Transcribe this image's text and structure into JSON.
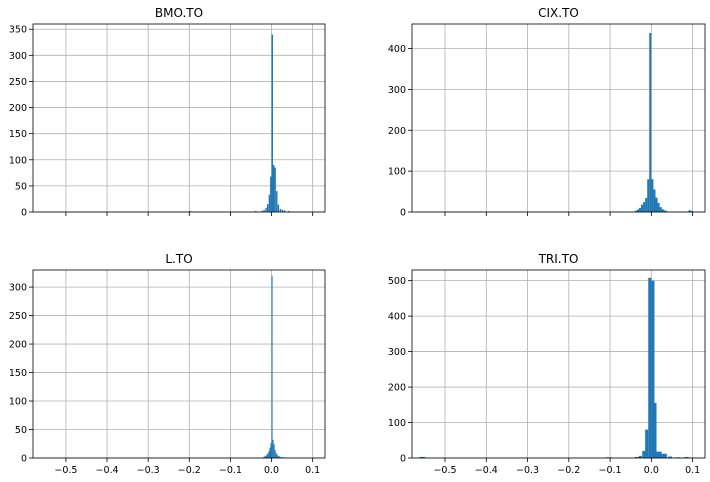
{
  "colors": {
    "bar": "#1f77b4",
    "grid": "#b0b0b0"
  },
  "chart_data": [
    {
      "type": "bar",
      "title": "BMO.TO",
      "xlim": [
        -0.58,
        0.13
      ],
      "ylim": [
        0,
        360
      ],
      "xticks": [
        -0.5,
        -0.4,
        -0.3,
        -0.2,
        -0.1,
        0.0,
        0.1
      ],
      "xtick_labels": [],
      "yticks": [
        0,
        50,
        100,
        150,
        200,
        250,
        300,
        350
      ],
      "grid": true,
      "bins": [
        {
          "x": -0.2,
          "w": 0.0035,
          "y": 2
        },
        {
          "x": -0.06,
          "w": 0.0035,
          "y": 1
        },
        {
          "x": -0.04,
          "w": 0.0035,
          "y": 2
        },
        {
          "x": -0.025,
          "w": 0.0035,
          "y": 2
        },
        {
          "x": -0.02,
          "w": 0.0035,
          "y": 4
        },
        {
          "x": -0.015,
          "w": 0.0035,
          "y": 8
        },
        {
          "x": -0.011,
          "w": 0.0035,
          "y": 15
        },
        {
          "x": -0.007,
          "w": 0.0035,
          "y": 33
        },
        {
          "x": -0.0035,
          "w": 0.0035,
          "y": 68
        },
        {
          "x": 0.0,
          "w": 0.0035,
          "y": 340
        },
        {
          "x": 0.0035,
          "w": 0.0035,
          "y": 90
        },
        {
          "x": 0.007,
          "w": 0.0035,
          "y": 85
        },
        {
          "x": 0.011,
          "w": 0.0035,
          "y": 40
        },
        {
          "x": 0.015,
          "w": 0.0035,
          "y": 14
        },
        {
          "x": 0.02,
          "w": 0.0035,
          "y": 6
        },
        {
          "x": 0.025,
          "w": 0.0035,
          "y": 4
        },
        {
          "x": 0.03,
          "w": 0.0035,
          "y": 3
        },
        {
          "x": 0.04,
          "w": 0.0035,
          "y": 2
        },
        {
          "x": 0.05,
          "w": 0.0035,
          "y": 1
        }
      ]
    },
    {
      "type": "bar",
      "title": "CIX.TO",
      "xlim": [
        -0.58,
        0.13
      ],
      "ylim": [
        0,
        460
      ],
      "xticks": [
        -0.5,
        -0.4,
        -0.3,
        -0.2,
        -0.1,
        0.0,
        0.1
      ],
      "xtick_labels": [],
      "yticks": [
        0,
        100,
        200,
        300,
        400
      ],
      "grid": true,
      "bins": [
        {
          "x": -0.04,
          "w": 0.005,
          "y": 3
        },
        {
          "x": -0.035,
          "w": 0.005,
          "y": 6
        },
        {
          "x": -0.03,
          "w": 0.005,
          "y": 10
        },
        {
          "x": -0.025,
          "w": 0.005,
          "y": 18
        },
        {
          "x": -0.02,
          "w": 0.005,
          "y": 24
        },
        {
          "x": -0.015,
          "w": 0.005,
          "y": 34
        },
        {
          "x": -0.01,
          "w": 0.005,
          "y": 80
        },
        {
          "x": -0.005,
          "w": 0.005,
          "y": 438
        },
        {
          "x": 0.0,
          "w": 0.005,
          "y": 80
        },
        {
          "x": 0.005,
          "w": 0.005,
          "y": 55
        },
        {
          "x": 0.01,
          "w": 0.005,
          "y": 35
        },
        {
          "x": 0.015,
          "w": 0.005,
          "y": 22
        },
        {
          "x": 0.02,
          "w": 0.005,
          "y": 12
        },
        {
          "x": 0.025,
          "w": 0.005,
          "y": 7
        },
        {
          "x": 0.03,
          "w": 0.005,
          "y": 4
        },
        {
          "x": 0.035,
          "w": 0.005,
          "y": 2
        },
        {
          "x": 0.09,
          "w": 0.005,
          "y": 4
        },
        {
          "x": 0.095,
          "w": 0.005,
          "y": 3
        }
      ]
    },
    {
      "type": "bar",
      "title": "L.TO",
      "xlim": [
        -0.58,
        0.13
      ],
      "ylim": [
        0,
        330
      ],
      "xticks": [
        -0.5,
        -0.4,
        -0.3,
        -0.2,
        -0.1,
        0.0,
        0.1
      ],
      "xtick_labels": [
        "−0.5",
        "−0.4",
        "−0.3",
        "−0.2",
        "−0.1",
        "0.0",
        "0.1"
      ],
      "yticks": [
        0,
        50,
        100,
        150,
        200,
        250,
        300
      ],
      "grid": true,
      "bins": [
        {
          "x": -0.14,
          "w": 0.0025,
          "y": 1
        },
        {
          "x": -0.02,
          "w": 0.0025,
          "y": 2
        },
        {
          "x": -0.0175,
          "w": 0.0025,
          "y": 3
        },
        {
          "x": -0.015,
          "w": 0.0025,
          "y": 4
        },
        {
          "x": -0.0125,
          "w": 0.0025,
          "y": 6
        },
        {
          "x": -0.01,
          "w": 0.0025,
          "y": 8
        },
        {
          "x": -0.0075,
          "w": 0.0025,
          "y": 12
        },
        {
          "x": -0.005,
          "w": 0.0025,
          "y": 18
        },
        {
          "x": -0.0025,
          "w": 0.0025,
          "y": 26
        },
        {
          "x": 0.0,
          "w": 0.0025,
          "y": 320
        },
        {
          "x": 0.0025,
          "w": 0.0025,
          "y": 32
        },
        {
          "x": 0.005,
          "w": 0.0025,
          "y": 24
        },
        {
          "x": 0.0075,
          "w": 0.0025,
          "y": 14
        },
        {
          "x": 0.01,
          "w": 0.0025,
          "y": 9
        },
        {
          "x": 0.0125,
          "w": 0.0025,
          "y": 6
        },
        {
          "x": 0.015,
          "w": 0.0025,
          "y": 4
        },
        {
          "x": 0.0175,
          "w": 0.0025,
          "y": 3
        },
        {
          "x": 0.02,
          "w": 0.0025,
          "y": 2
        },
        {
          "x": 0.025,
          "w": 0.0025,
          "y": 2
        },
        {
          "x": 0.03,
          "w": 0.0025,
          "y": 1
        }
      ]
    },
    {
      "type": "bar",
      "title": "TRI.TO",
      "xlim": [
        -0.58,
        0.13
      ],
      "ylim": [
        0,
        530
      ],
      "xticks": [
        -0.5,
        -0.4,
        -0.3,
        -0.2,
        -0.1,
        0.0,
        0.1
      ],
      "xtick_labels": [
        "−0.5",
        "−0.4",
        "−0.3",
        "−0.2",
        "−0.1",
        "0.0",
        "0.1"
      ],
      "yticks": [
        0,
        100,
        200,
        300,
        400,
        500
      ],
      "grid": true,
      "bins": [
        {
          "x": -0.562,
          "w": 0.014,
          "y": 3
        },
        {
          "x": -0.11,
          "w": 0.014,
          "y": 2
        },
        {
          "x": -0.04,
          "w": 0.014,
          "y": 3
        },
        {
          "x": -0.03,
          "w": 0.007,
          "y": 6
        },
        {
          "x": -0.022,
          "w": 0.0075,
          "y": 20
        },
        {
          "x": -0.015,
          "w": 0.0075,
          "y": 80
        },
        {
          "x": -0.0075,
          "w": 0.0075,
          "y": 508
        },
        {
          "x": 0.0,
          "w": 0.0075,
          "y": 500
        },
        {
          "x": 0.0025,
          "w": 0.01,
          "y": 155
        },
        {
          "x": 0.0125,
          "w": 0.0125,
          "y": 18
        },
        {
          "x": 0.025,
          "w": 0.0125,
          "y": 12
        },
        {
          "x": 0.04,
          "w": 0.01,
          "y": 4
        },
        {
          "x": 0.06,
          "w": 0.01,
          "y": 2
        },
        {
          "x": 0.08,
          "w": 0.01,
          "y": 3
        }
      ]
    }
  ]
}
